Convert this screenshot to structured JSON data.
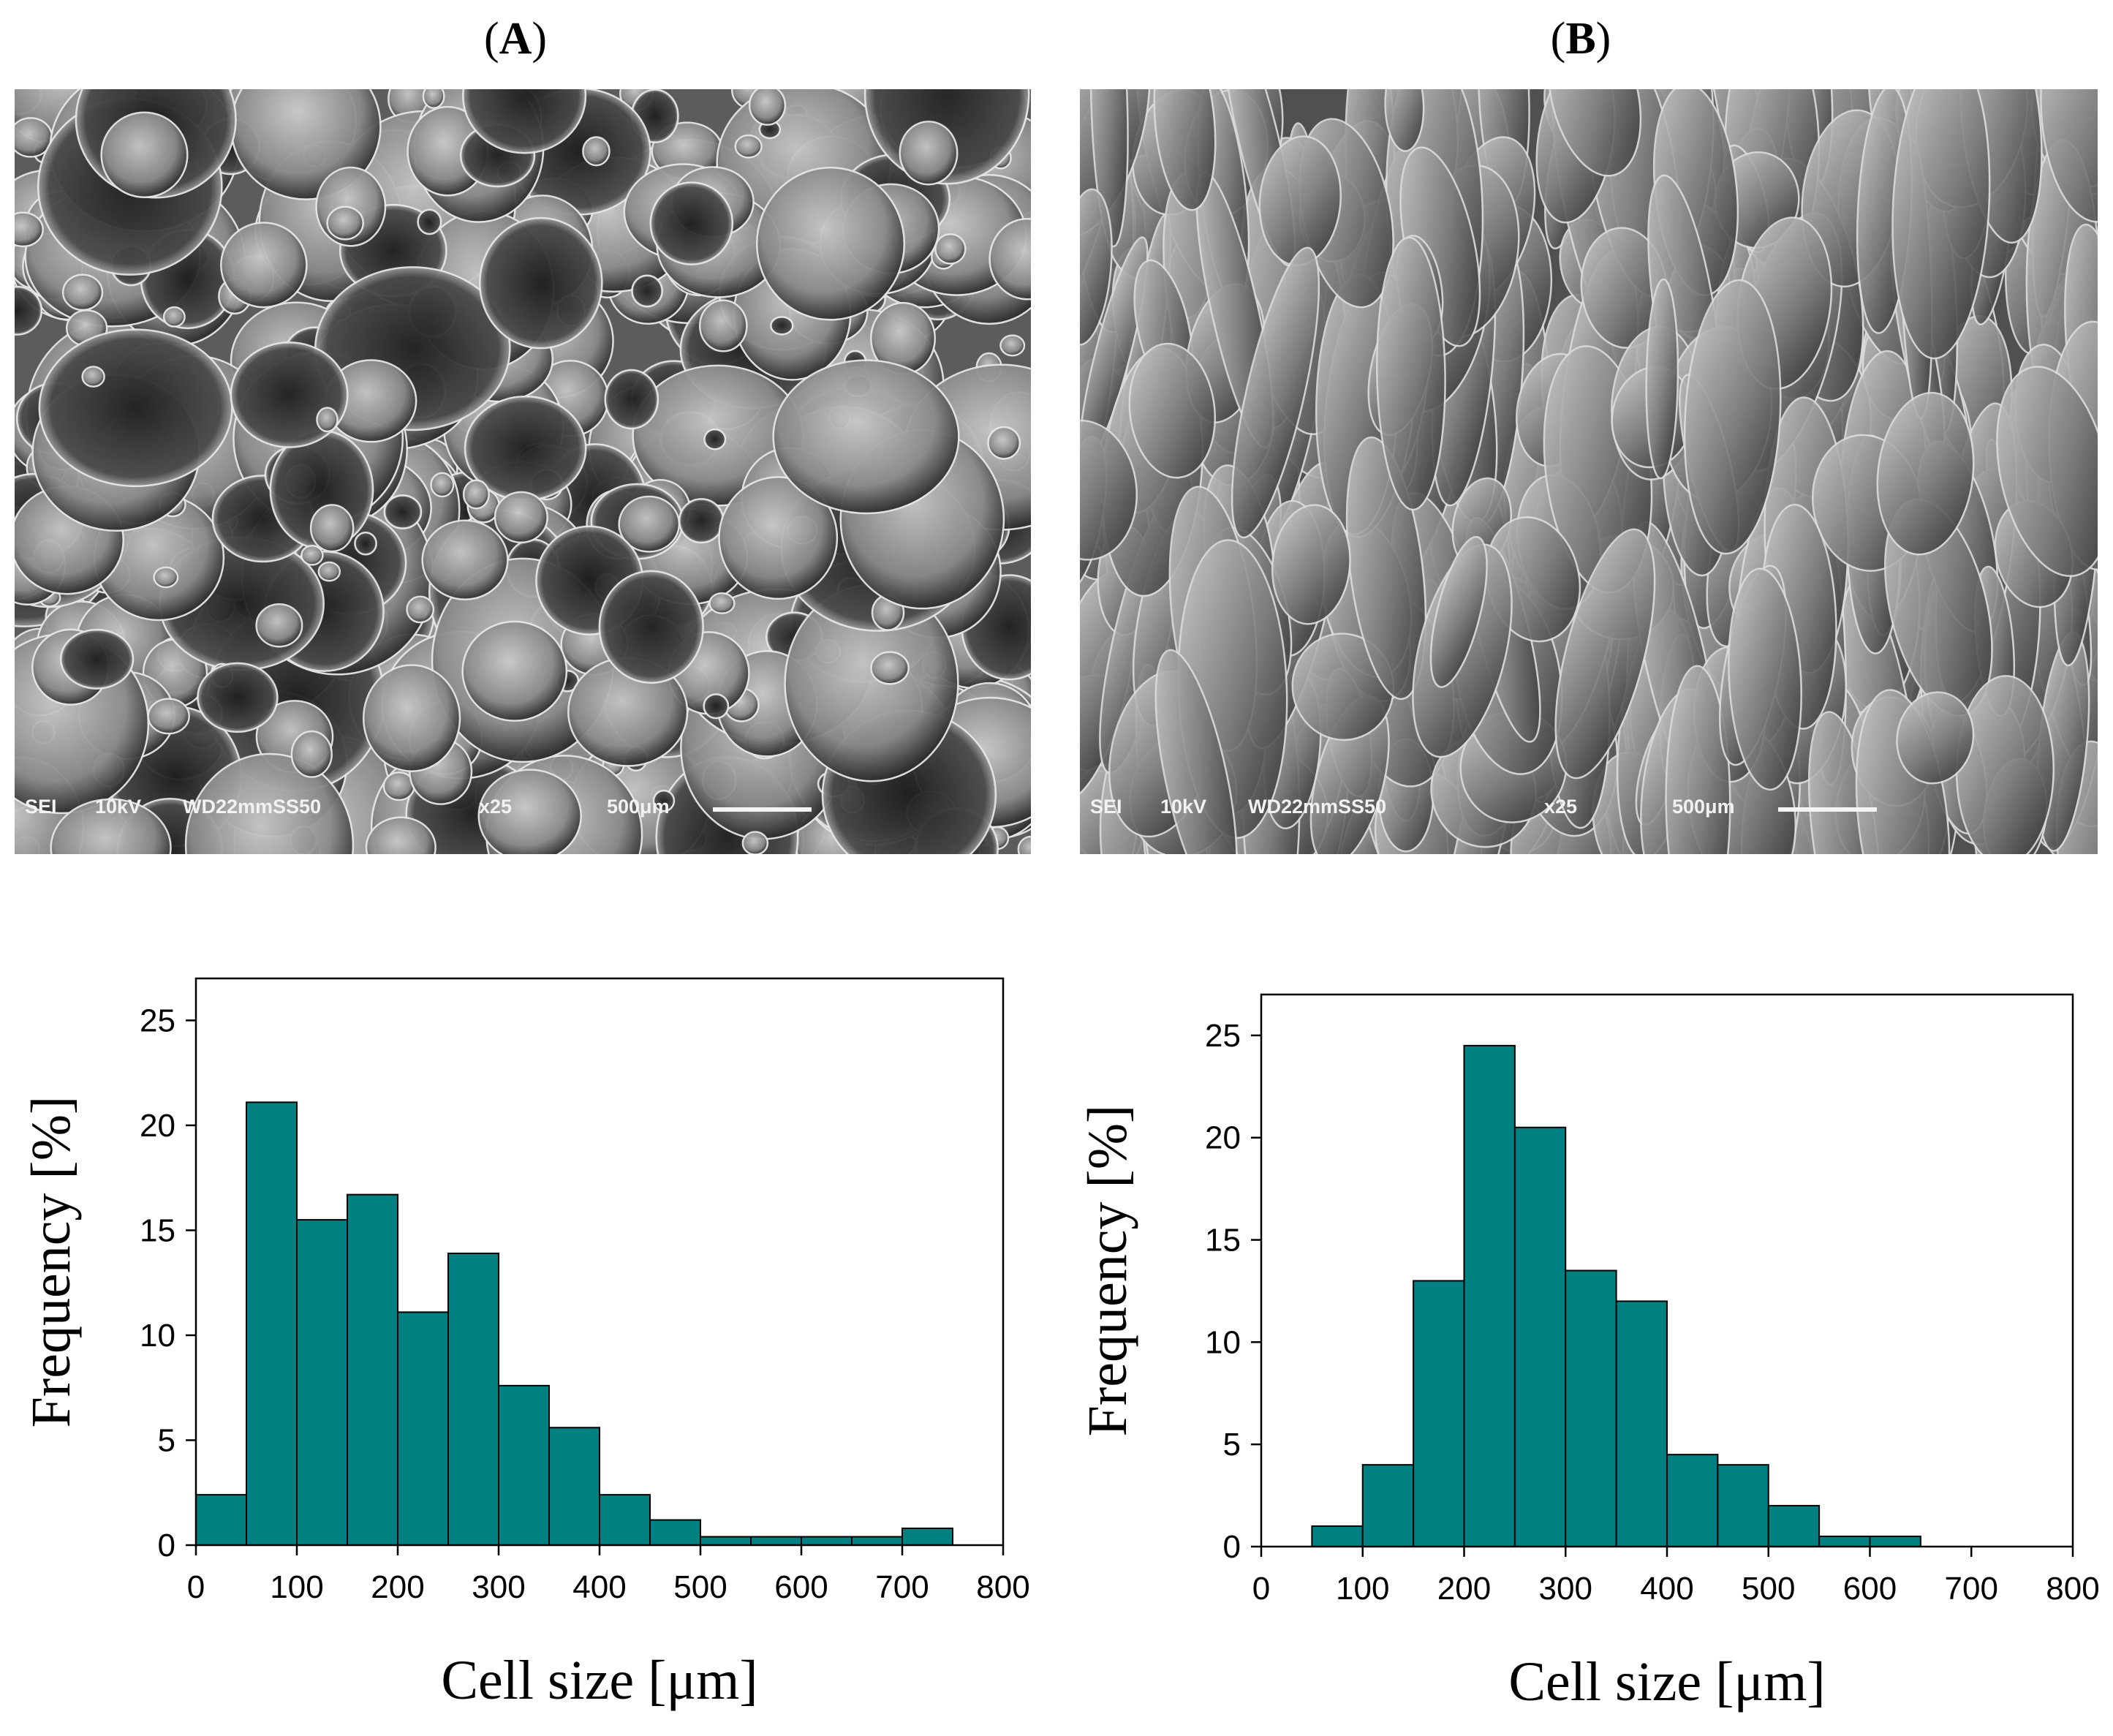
{
  "panels": [
    {
      "label": "A",
      "sem": {
        "detector": "SEI",
        "voltage": "10kV",
        "wd": "WD22mmSS50",
        "magnification": "x25",
        "scale": "500μm"
      }
    },
    {
      "label": "B",
      "sem": {
        "detector": "SEI",
        "voltage": "10kV",
        "wd": "WD22mmSS50",
        "magnification": "x25",
        "scale": "500μm"
      }
    }
  ],
  "chart_data": [
    {
      "type": "bar",
      "xlabel": "Cell size [μm]",
      "ylabel": "Frequency [%]",
      "xlim": [
        0,
        800
      ],
      "ylim": [
        0,
        27
      ],
      "xticks": [
        0,
        100,
        200,
        300,
        400,
        500,
        600,
        700,
        800
      ],
      "yticks": [
        0,
        5,
        10,
        15,
        20,
        25
      ],
      "bin_width": 50,
      "bins_start": [
        0,
        50,
        100,
        150,
        200,
        250,
        300,
        350,
        400,
        450,
        500,
        550,
        600,
        650,
        700
      ],
      "values": [
        2.4,
        21.1,
        15.5,
        16.7,
        11.1,
        13.9,
        7.6,
        5.6,
        2.4,
        1.2,
        0.4,
        0.4,
        0.4,
        0.4,
        0.8
      ],
      "color": "#008080"
    },
    {
      "type": "bar",
      "xlabel": "Cell size [μm]",
      "ylabel": "Frequency [%]",
      "xlim": [
        0,
        800
      ],
      "ylim": [
        0,
        27
      ],
      "xticks": [
        0,
        100,
        200,
        300,
        400,
        500,
        600,
        700,
        800
      ],
      "yticks": [
        0,
        5,
        10,
        15,
        20,
        25
      ],
      "bin_width": 50,
      "bins_start": [
        50,
        100,
        150,
        200,
        250,
        300,
        350,
        400,
        450,
        500,
        550,
        600
      ],
      "values": [
        1.0,
        4.0,
        13.0,
        24.5,
        20.5,
        13.5,
        12.0,
        4.5,
        4.0,
        2.0,
        0.5,
        0.5
      ],
      "color": "#008080"
    }
  ]
}
